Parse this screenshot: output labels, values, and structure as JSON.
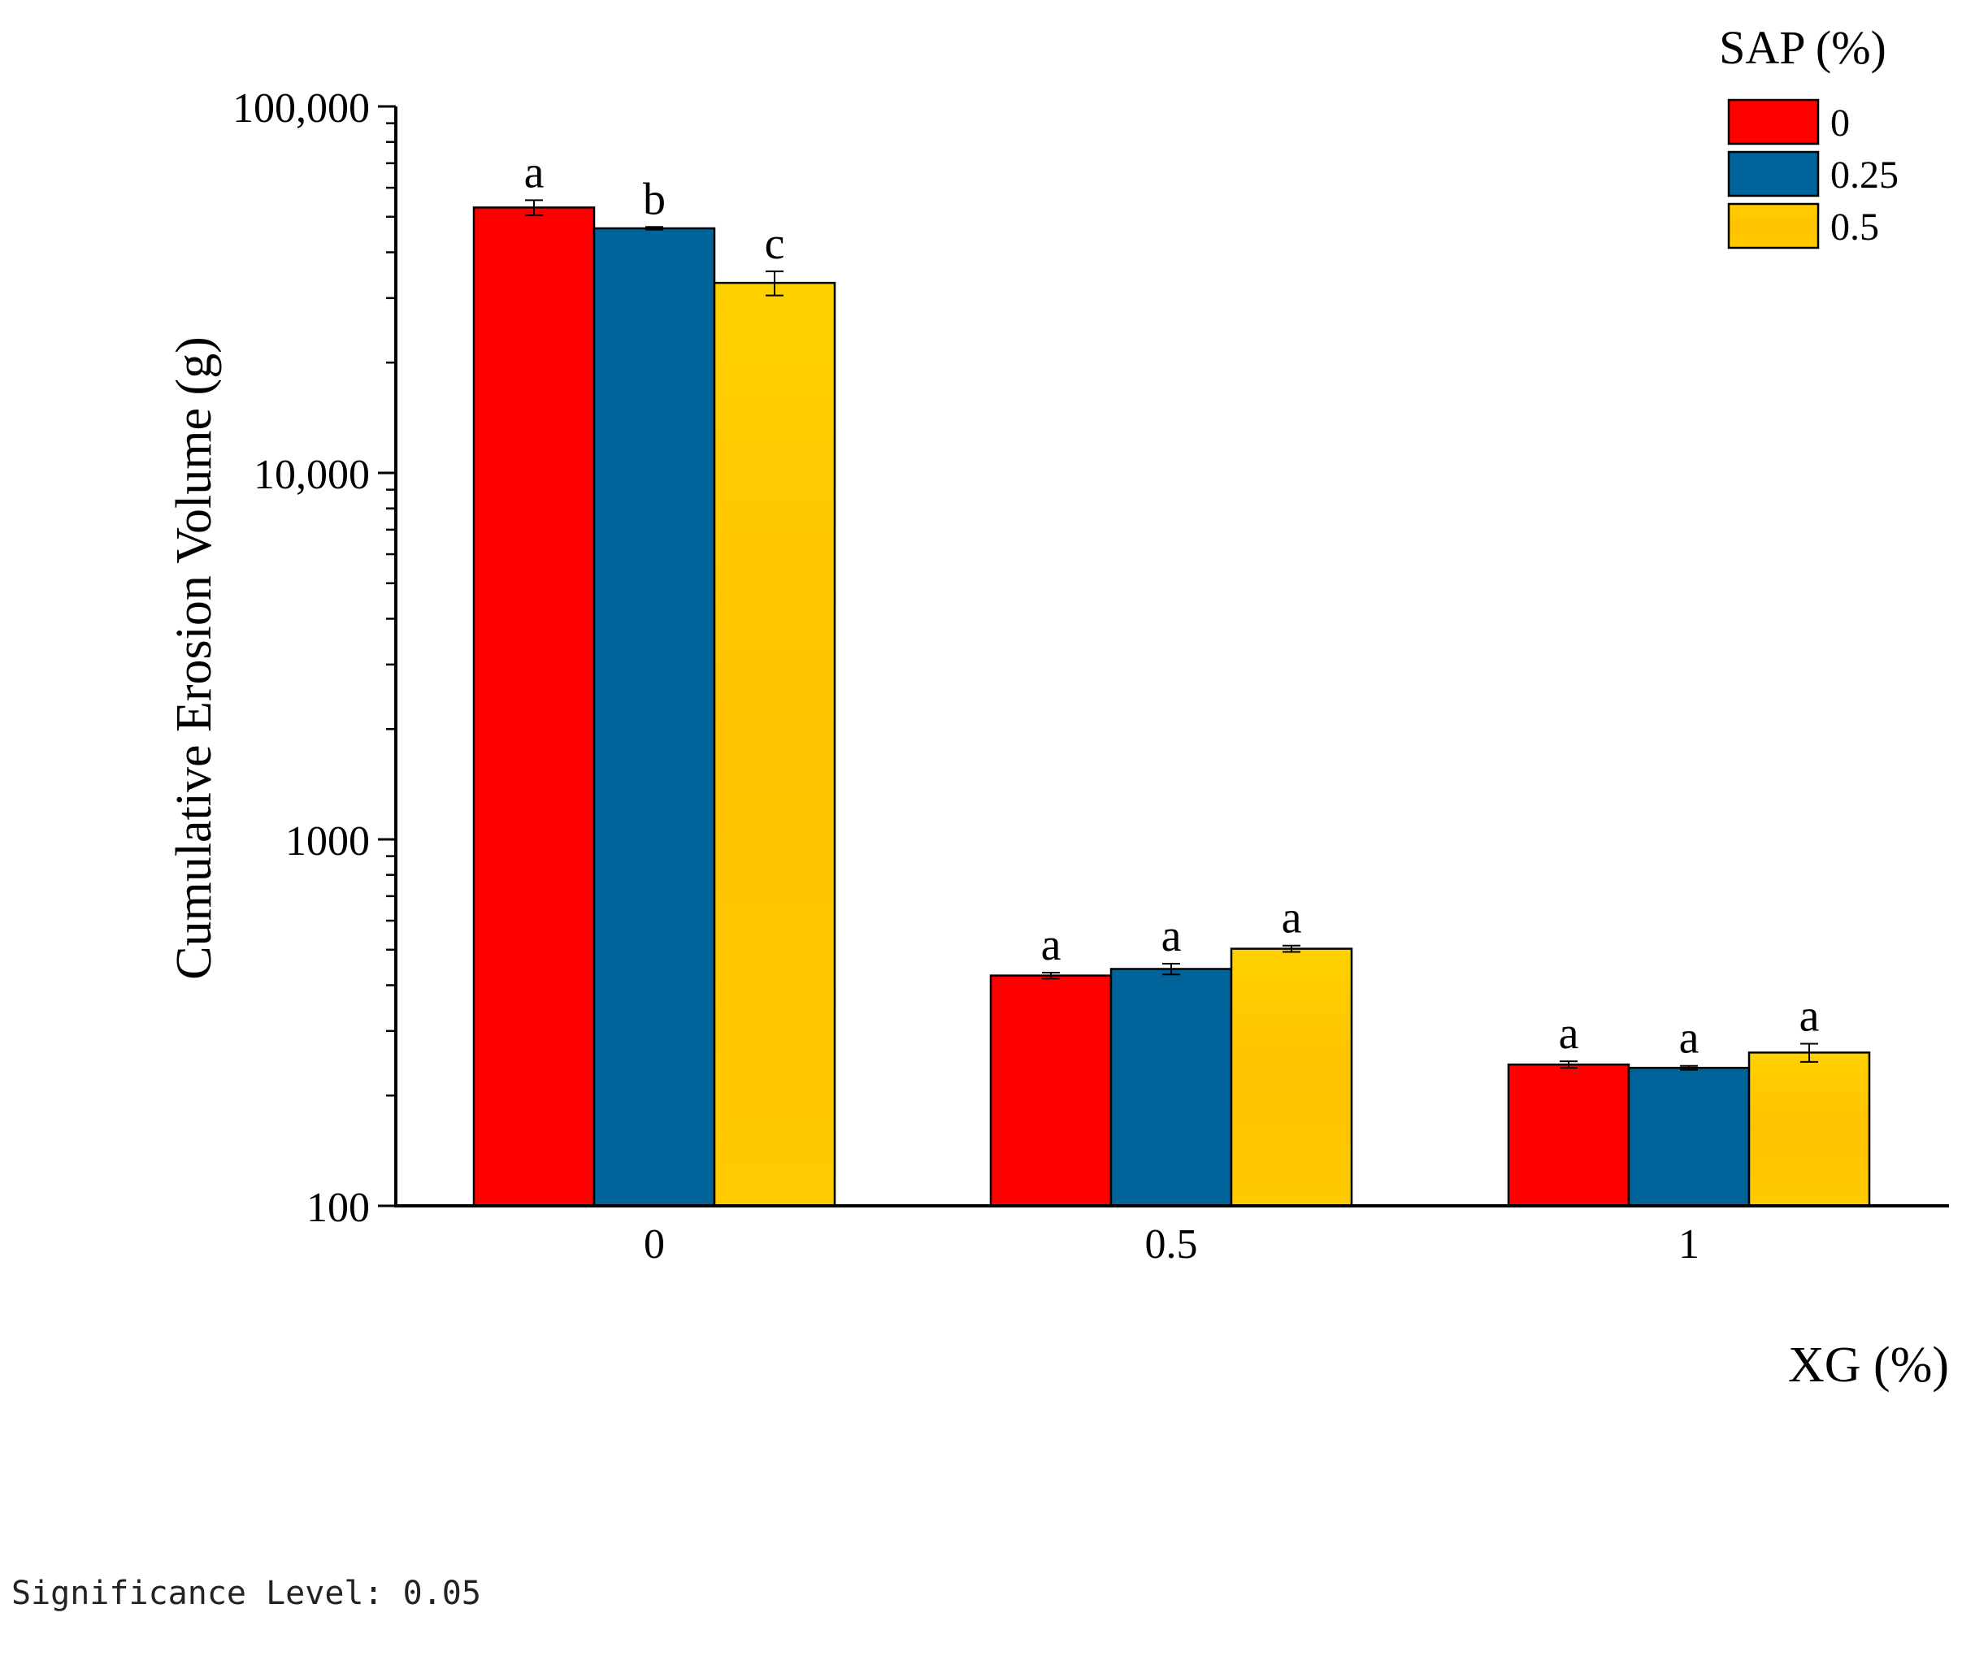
{
  "chart_data": {
    "type": "bar",
    "xlabel": "XG (%)",
    "ylabel": "Cumulative Erosion Volume (g)",
    "yscale": "log",
    "ylim": [
      100,
      100000
    ],
    "yticks": [
      {
        "value": 100,
        "label": "100"
      },
      {
        "value": 1000,
        "label": "1000"
      },
      {
        "value": 10000,
        "label": "10,000"
      },
      {
        "value": 100000,
        "label": "100,000"
      }
    ],
    "categories": [
      "0",
      "0.5",
      "1"
    ],
    "legend": {
      "title": "SAP (%)",
      "position": "top-right"
    },
    "series": [
      {
        "name": "0",
        "color": "#ff0000",
        "values": [
          53000,
          425,
          243
        ],
        "errors": [
          2500,
          8,
          5
        ],
        "letters": [
          "a",
          "a",
          "a"
        ]
      },
      {
        "name": "0.25",
        "color": "#00649b",
        "values": [
          46500,
          443,
          238
        ],
        "errors": [
          400,
          15,
          3
        ],
        "letters": [
          "b",
          "a",
          "a"
        ]
      },
      {
        "name": "0.5",
        "color": "#ffc800",
        "values": [
          33000,
          503,
          262
        ],
        "errors": [
          2500,
          10,
          15
        ],
        "letters": [
          "c",
          "a",
          "a"
        ]
      }
    ]
  },
  "footer": {
    "note": "Significance Level: 0.05"
  }
}
